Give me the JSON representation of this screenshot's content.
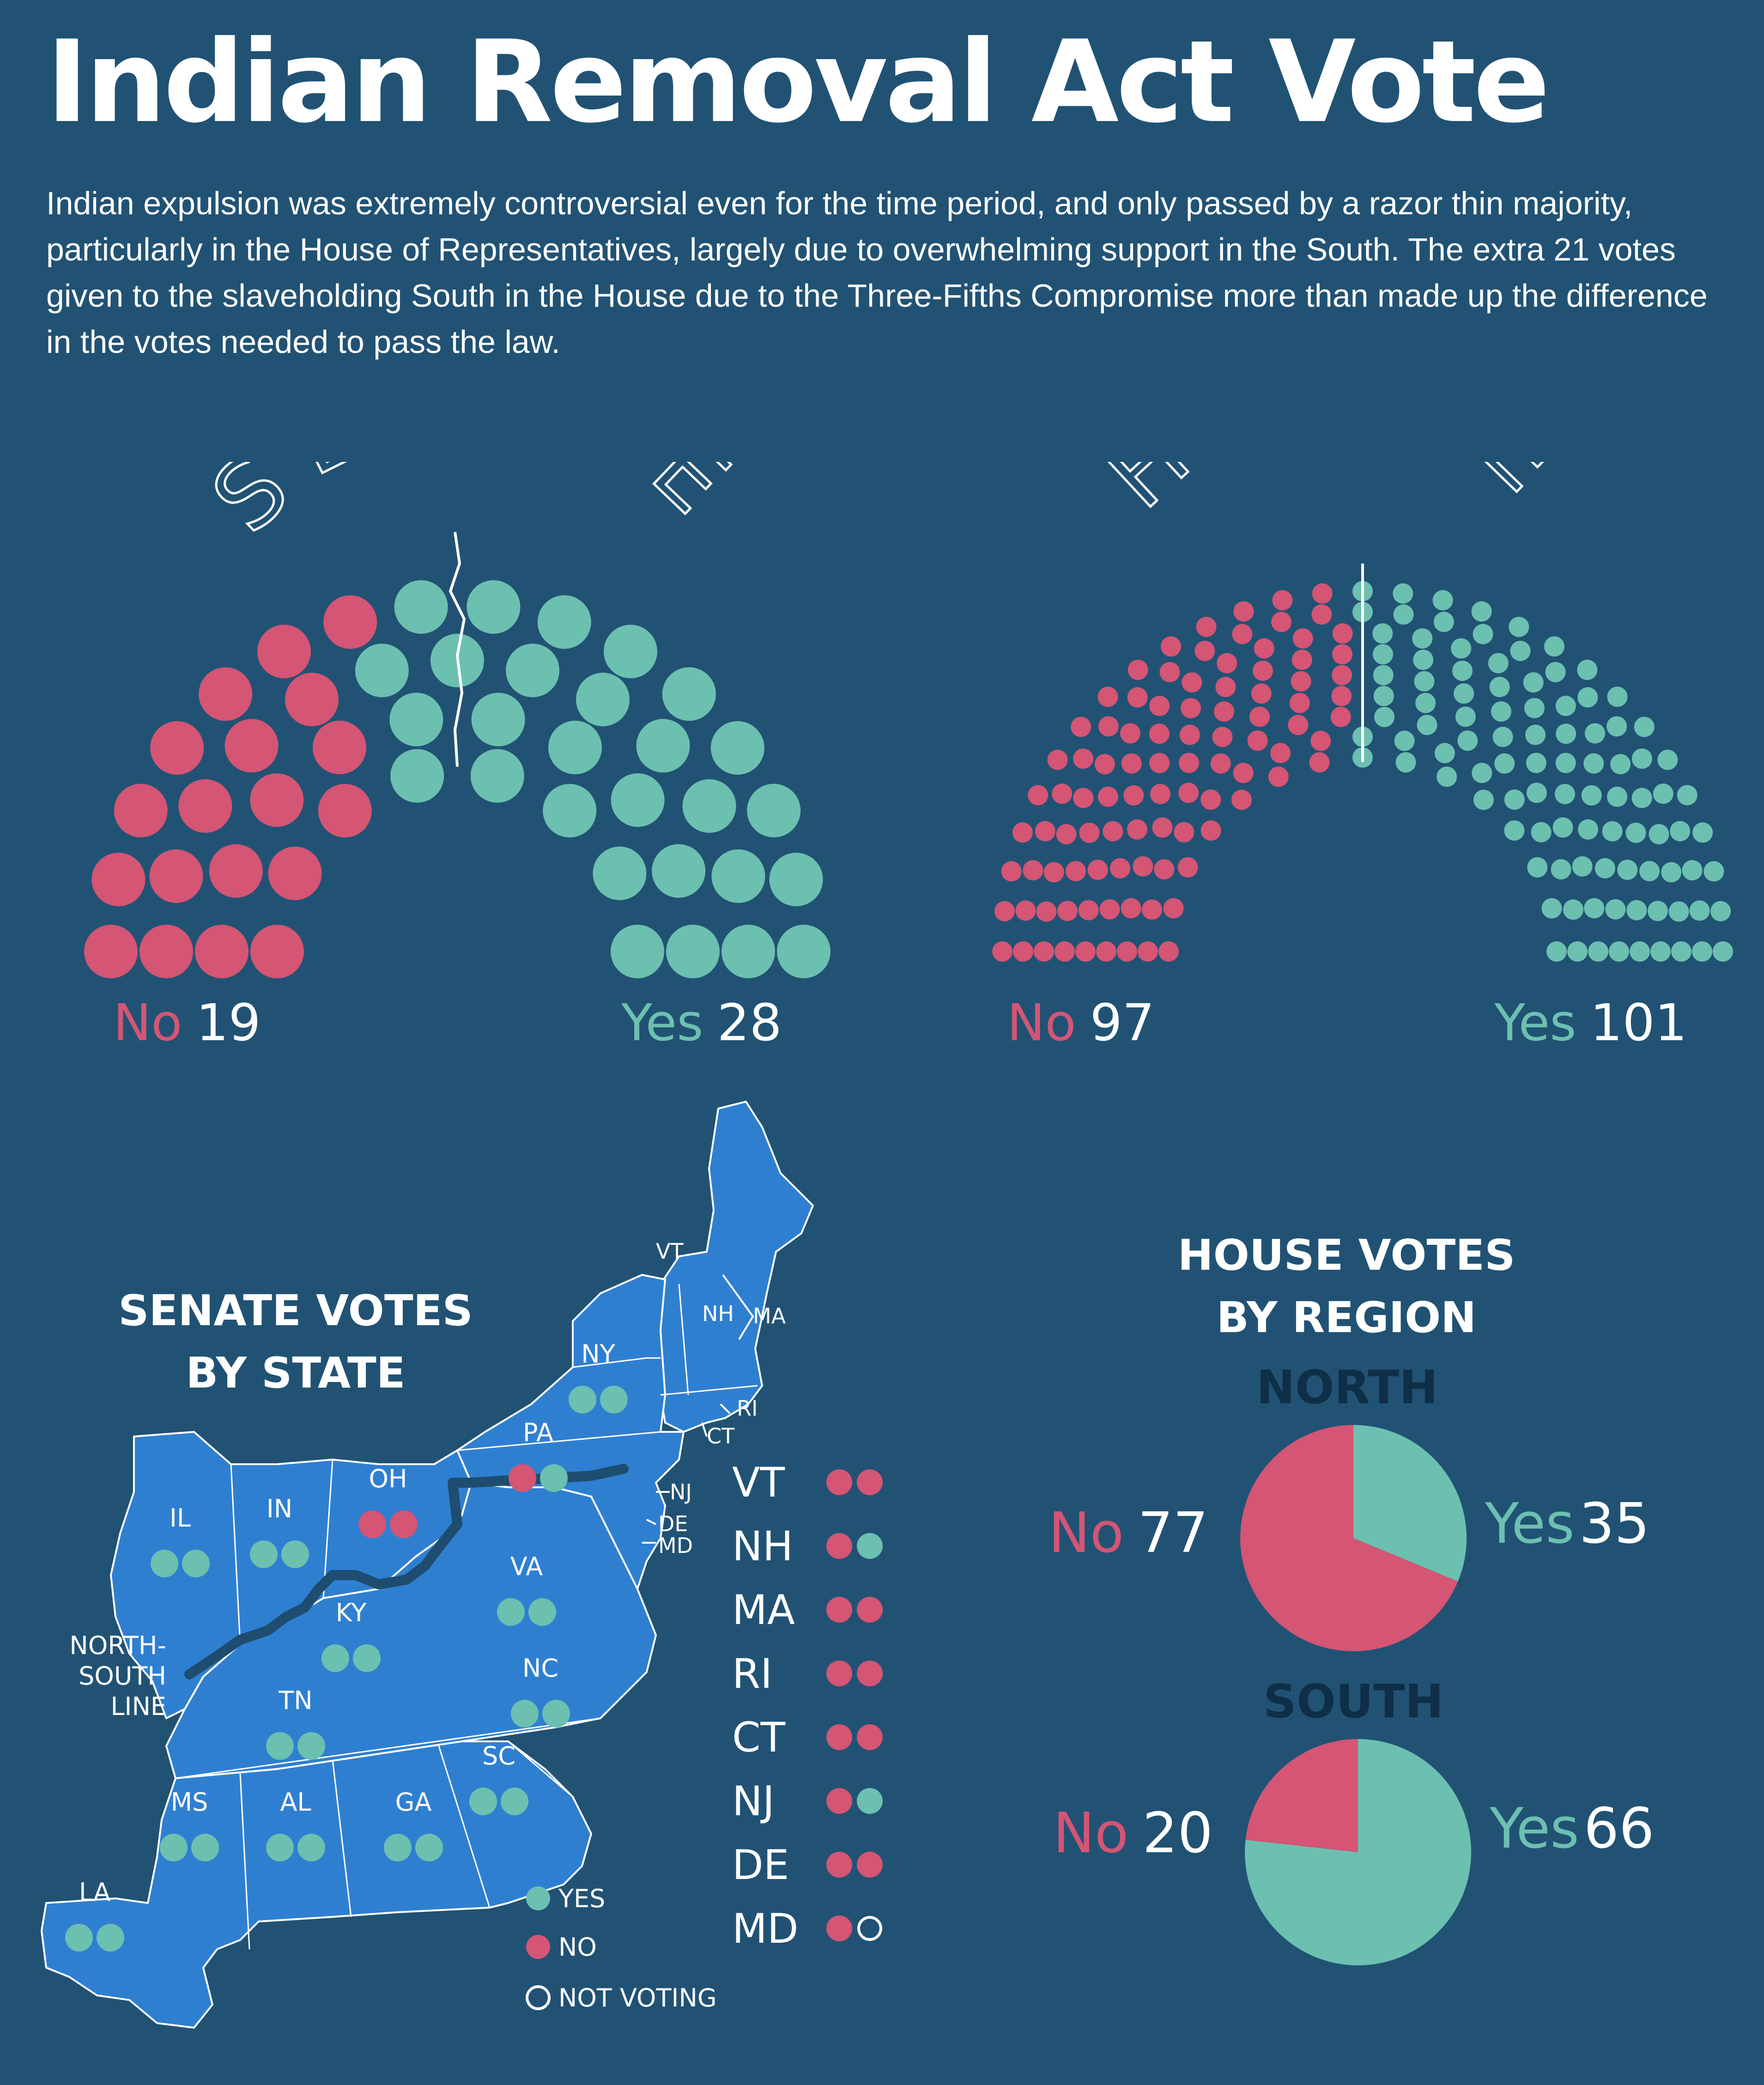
{
  "title": "Indian Removal Act Vote",
  "subtitle": "Indian expulsion was extremely controversial even for the time period, and only passed by a razor thin majority, particularly in the House of Representatives, largely due to overwhelming support in the South. The extra 21 votes given to the slaveholding South in the House due to the Three-Fifths Compromise more than made up the difference in the votes needed to pass the law.",
  "colors": {
    "background": "#215274",
    "no": "#d45574",
    "yes": "#6cc0b0",
    "map": "#2f7fd1",
    "region_label": "#0f2f47"
  },
  "labels": {
    "no": "No",
    "yes": "Yes"
  },
  "senate": {
    "heading": "SENATE",
    "no": 19,
    "yes": 28
  },
  "house": {
    "heading": "HOUSE",
    "no": 97,
    "yes": 101
  },
  "map": {
    "heading_line1": "SENATE VOTES",
    "heading_line2": "BY STATE",
    "line_label_1": "NORTH-",
    "line_label_2": "SOUTH",
    "line_label_3": "LINE",
    "states": [
      {
        "abbr": "NY",
        "votes": [
          "yes",
          "yes"
        ]
      },
      {
        "abbr": "PA",
        "votes": [
          "no",
          "yes"
        ]
      },
      {
        "abbr": "OH",
        "votes": [
          "no",
          "no"
        ]
      },
      {
        "abbr": "IN",
        "votes": [
          "yes",
          "yes"
        ]
      },
      {
        "abbr": "IL",
        "votes": [
          "yes",
          "yes"
        ]
      },
      {
        "abbr": "VA",
        "votes": [
          "yes",
          "yes"
        ]
      },
      {
        "abbr": "KY",
        "votes": [
          "yes",
          "yes"
        ]
      },
      {
        "abbr": "NC",
        "votes": [
          "yes",
          "yes"
        ]
      },
      {
        "abbr": "TN",
        "votes": [
          "yes",
          "yes"
        ]
      },
      {
        "abbr": "SC",
        "votes": [
          "yes",
          "yes"
        ]
      },
      {
        "abbr": "MS",
        "votes": [
          "yes",
          "yes"
        ]
      },
      {
        "abbr": "AL",
        "votes": [
          "yes",
          "yes"
        ]
      },
      {
        "abbr": "GA",
        "votes": [
          "yes",
          "yes"
        ]
      },
      {
        "abbr": "LA",
        "votes": [
          "yes",
          "yes"
        ]
      }
    ],
    "map_tags": [
      "VT",
      "NH",
      "MA",
      "RI",
      "CT",
      "NJ",
      "DE",
      "MD"
    ],
    "small_states": [
      {
        "abbr": "VT",
        "votes": [
          "no",
          "no"
        ]
      },
      {
        "abbr": "NH",
        "votes": [
          "no",
          "yes"
        ]
      },
      {
        "abbr": "MA",
        "votes": [
          "no",
          "no"
        ]
      },
      {
        "abbr": "RI",
        "votes": [
          "no",
          "no"
        ]
      },
      {
        "abbr": "CT",
        "votes": [
          "no",
          "no"
        ]
      },
      {
        "abbr": "NJ",
        "votes": [
          "no",
          "yes"
        ]
      },
      {
        "abbr": "DE",
        "votes": [
          "no",
          "no"
        ]
      },
      {
        "abbr": "MD",
        "votes": [
          "no",
          "not voting"
        ]
      }
    ],
    "legend": {
      "yes": "YES",
      "no": "NO",
      "not_voting": "NOT VOTING"
    }
  },
  "region": {
    "heading_line1": "HOUSE VOTES",
    "heading_line2": "BY REGION",
    "north": {
      "label": "NORTH",
      "no": 77,
      "yes": 35
    },
    "south": {
      "label": "SOUTH",
      "no": 20,
      "yes": 66
    }
  },
  "chart_data": [
    {
      "type": "parliament",
      "title": "SENATE",
      "categories": [
        "No",
        "Yes"
      ],
      "values": [
        19,
        28
      ]
    },
    {
      "type": "parliament",
      "title": "HOUSE",
      "categories": [
        "No",
        "Yes"
      ],
      "values": [
        97,
        101
      ]
    },
    {
      "type": "pie",
      "title": "NORTH",
      "categories": [
        "No",
        "Yes"
      ],
      "values": [
        77,
        35
      ]
    },
    {
      "type": "pie",
      "title": "SOUTH",
      "categories": [
        "No",
        "Yes"
      ],
      "values": [
        20,
        66
      ]
    }
  ]
}
